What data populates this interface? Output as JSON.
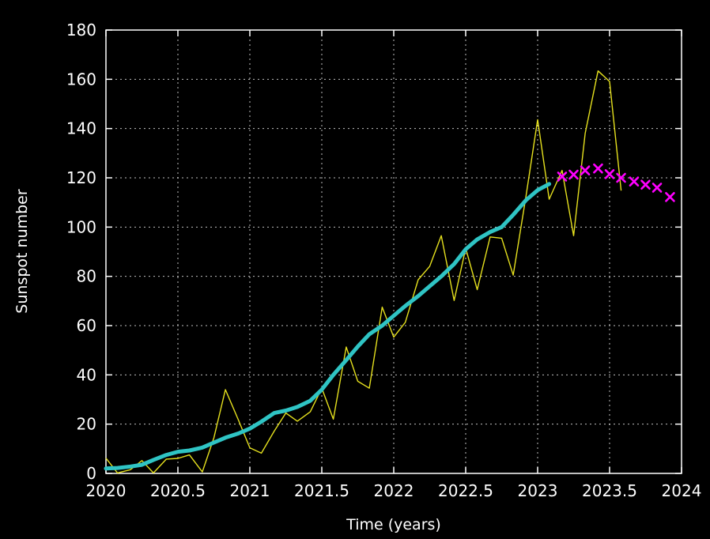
{
  "chart_data": {
    "type": "line",
    "title": "",
    "xlabel": "Time (years)",
    "ylabel": "Sunspot number",
    "xlim": [
      2020,
      2024
    ],
    "ylim": [
      0,
      180
    ],
    "grid": true,
    "legend": "none",
    "x_ticks": [
      2020,
      2020.5,
      2021,
      2021.5,
      2022,
      2022.5,
      2023,
      2023.5,
      2024
    ],
    "x_tick_labels": [
      "2020",
      "2020.5",
      "2021",
      "2021.5",
      "2022",
      "2022.5",
      "2023",
      "2023.5",
      "2024"
    ],
    "y_ticks": [
      0,
      20,
      40,
      60,
      80,
      100,
      120,
      140,
      160,
      180
    ],
    "y_tick_labels": [
      "0",
      "20",
      "40",
      "60",
      "80",
      "100",
      "120",
      "140",
      "160",
      "180"
    ],
    "series": [
      {
        "style": "thin-line",
        "color": "#e5e01e",
        "x": [
          2020.0,
          2020.08,
          2020.17,
          2020.25,
          2020.33,
          2020.42,
          2020.5,
          2020.58,
          2020.67,
          2020.75,
          2020.83,
          2020.92,
          2021.0,
          2021.08,
          2021.17,
          2021.25,
          2021.33,
          2021.42,
          2021.5,
          2021.58,
          2021.67,
          2021.75,
          2021.83,
          2021.92,
          2022.0,
          2022.08,
          2022.17,
          2022.25,
          2022.33,
          2022.42,
          2022.5,
          2022.58,
          2022.67,
          2022.75,
          2022.83,
          2022.92,
          2023.0,
          2023.08,
          2023.17,
          2023.25,
          2023.33,
          2023.42,
          2023.5,
          2023.58
        ],
        "y": [
          6.2,
          0.2,
          1.5,
          5.2,
          0.2,
          5.8,
          6.1,
          7.5,
          0.6,
          14.4,
          34.0,
          21.8,
          10.4,
          8.2,
          17.2,
          24.5,
          21.2,
          25.0,
          34.6,
          22.0,
          51.3,
          37.4,
          34.6,
          67.5,
          55.3,
          61.3,
          78.6,
          84.1,
          96.5,
          70.2,
          91.4,
          74.6,
          96.0,
          95.5,
          80.5,
          112.8,
          143.6,
          111.3,
          123.0,
          96.5,
          138.0,
          163.4,
          159.1,
          114.8
        ]
      },
      {
        "style": "thick-smoothed-line",
        "color": "#2fc4c4",
        "x": [
          2020.0,
          2020.08,
          2020.17,
          2020.25,
          2020.33,
          2020.42,
          2020.5,
          2020.58,
          2020.67,
          2020.75,
          2020.83,
          2020.92,
          2021.0,
          2021.08,
          2021.17,
          2021.25,
          2021.33,
          2021.42,
          2021.5,
          2021.58,
          2021.67,
          2021.75,
          2021.83,
          2021.92,
          2022.0,
          2022.08,
          2022.17,
          2022.25,
          2022.33,
          2022.42,
          2022.5,
          2022.58,
          2022.67,
          2022.75,
          2022.83,
          2022.92,
          2023.0,
          2023.08
        ],
        "y": [
          2.0,
          2.2,
          2.8,
          3.5,
          5.5,
          7.5,
          8.8,
          9.3,
          10.5,
          12.5,
          14.5,
          16.2,
          18.2,
          21.0,
          24.5,
          25.5,
          27.0,
          29.5,
          34.0,
          40.0,
          46.0,
          51.5,
          56.5,
          60.0,
          64.0,
          68.0,
          72.0,
          76.0,
          80.0,
          85.0,
          91.0,
          95.0,
          98.0,
          100.0,
          105.0,
          111.0,
          115.0,
          117.5
        ]
      },
      {
        "style": "markers-x",
        "color": "#ff00ff",
        "x": [
          2023.17,
          2023.25,
          2023.33,
          2023.42,
          2023.5,
          2023.58,
          2023.67,
          2023.75,
          2023.83,
          2023.92
        ],
        "y": [
          120.5,
          121.3,
          123.0,
          123.8,
          121.5,
          120.0,
          118.5,
          117.2,
          116.0,
          112.2
        ]
      }
    ]
  }
}
